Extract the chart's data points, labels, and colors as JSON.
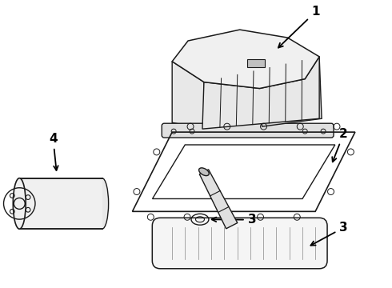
{
  "background_color": "#ffffff",
  "line_color": "#1a1a1a",
  "label_color": "#000000",
  "figsize": [
    4.9,
    3.6
  ],
  "dpi": 100,
  "lw": 1.0
}
